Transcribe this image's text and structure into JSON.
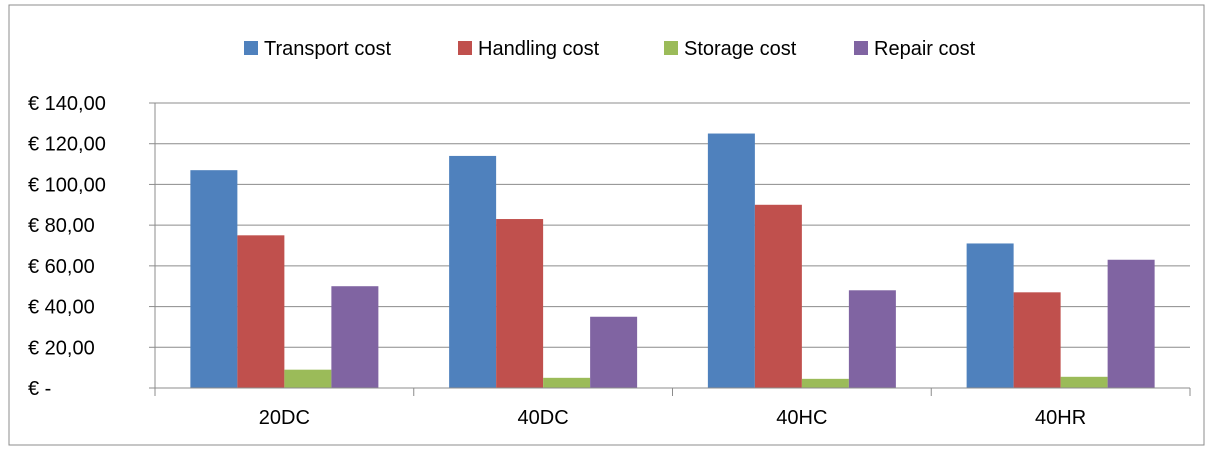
{
  "chart_data": {
    "type": "bar",
    "title": "",
    "xlabel": "",
    "ylabel": "",
    "categories": [
      "20DC",
      "40DC",
      "40HC",
      "40HR"
    ],
    "series": [
      {
        "name": "Transport cost",
        "color": "#4F81BD",
        "values": [
          107,
          114,
          125,
          71
        ]
      },
      {
        "name": "Handling cost",
        "color": "#C0504D",
        "values": [
          75,
          83,
          90,
          47
        ]
      },
      {
        "name": "Storage cost",
        "color": "#9BBB59",
        "values": [
          9,
          5,
          4.5,
          5.5
        ]
      },
      {
        "name": "Repair cost",
        "color": "#8064A2",
        "values": [
          50,
          35,
          48,
          63
        ]
      }
    ],
    "ylim": [
      0,
      140
    ],
    "yticks": [
      0,
      20,
      40,
      60,
      80,
      100,
      120,
      140
    ],
    "ytick_labels": [
      "€ -",
      "€ 20,00",
      "€ 40,00",
      "€ 60,00",
      "€ 80,00",
      "€ 100,00",
      "€ 120,00",
      "€ 140,00"
    ],
    "grid": true,
    "legend_position": "top"
  }
}
